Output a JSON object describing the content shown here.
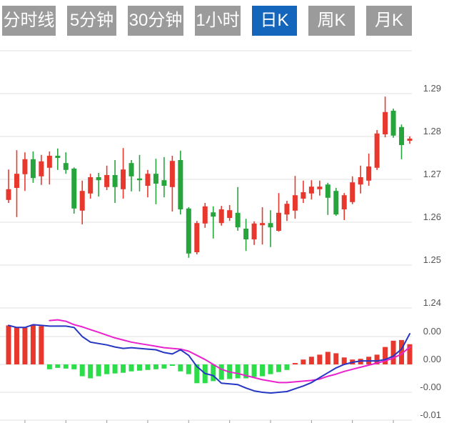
{
  "tabs": {
    "items": [
      {
        "label": "分时线",
        "active": false
      },
      {
        "label": "5分钟",
        "active": false
      },
      {
        "label": "30分钟",
        "active": false
      },
      {
        "label": "1小时",
        "active": false
      },
      {
        "label": "日K",
        "active": true
      },
      {
        "label": "周K",
        "active": false
      },
      {
        "label": "月K",
        "active": false
      }
    ]
  },
  "colors": {
    "up": "#e8382e",
    "down": "#27a53d",
    "macd_up": "#e8382e",
    "macd_down": "#2bdd48",
    "dif_line": "#2636c4",
    "dea_line": "#e922cd",
    "tab_active": "#1466bd",
    "tab_inactive": "#9b9b9b",
    "grid": "#e2e2e2",
    "axis_text": "#555555"
  },
  "chart_data": [
    {
      "type": "candlestick",
      "title": "Daily K-line (日K)",
      "y_axis": {
        "values": [
          1.3,
          1.29,
          1.28,
          1.27,
          1.26,
          1.25,
          1.24
        ],
        "labels": [
          "",
          "1.29",
          "1.28",
          "1.27",
          "1.26",
          "1.25",
          "1.24"
        ]
      },
      "ylim": [
        1.2375,
        1.3017
      ],
      "grid": true,
      "candles": [
        [
          1.2652,
          1.2723,
          1.2645,
          1.2677
        ],
        [
          1.268,
          1.2768,
          1.2612,
          1.2713
        ],
        [
          1.2712,
          1.2763,
          1.2673,
          1.2747
        ],
        [
          1.2747,
          1.2765,
          1.2692,
          1.2703
        ],
        [
          1.2707,
          1.2757,
          1.2687,
          1.2742
        ],
        [
          1.2727,
          1.2765,
          1.2688,
          1.2755
        ],
        [
          1.2755,
          1.2772,
          1.2722,
          1.275
        ],
        [
          1.2738,
          1.2763,
          1.2713,
          1.2722
        ],
        [
          1.2725,
          1.2728,
          1.262,
          1.2632
        ],
        [
          1.2627,
          1.2697,
          1.2595,
          1.2673
        ],
        [
          1.2667,
          1.2713,
          1.2655,
          1.2705
        ],
        [
          1.2705,
          1.2715,
          1.266,
          1.2698
        ],
        [
          1.2682,
          1.2732,
          1.2675,
          1.271
        ],
        [
          1.271,
          1.2745,
          1.2645,
          1.2682
        ],
        [
          1.2677,
          1.2773,
          1.2655,
          1.2723
        ],
        [
          1.2738,
          1.2745,
          1.2672,
          1.2707
        ],
        [
          1.2702,
          1.2757,
          1.2672,
          1.2698
        ],
        [
          1.2685,
          1.2722,
          1.2658,
          1.2713
        ],
        [
          1.2713,
          1.2748,
          1.2642,
          1.269
        ],
        [
          1.2698,
          1.2752,
          1.2658,
          1.2685
        ],
        [
          1.2682,
          1.2755,
          1.2625,
          1.2743
        ],
        [
          1.2745,
          1.2767,
          1.2618,
          1.263
        ],
        [
          1.2632,
          1.2635,
          1.2517,
          1.2527
        ],
        [
          1.253,
          1.2603,
          1.2525,
          1.2598
        ],
        [
          1.2597,
          1.2645,
          1.2587,
          1.2637
        ],
        [
          1.2623,
          1.2637,
          1.2562,
          1.2613
        ],
        [
          1.2598,
          1.2638,
          1.2592,
          1.263
        ],
        [
          1.261,
          1.264,
          1.2603,
          1.2628
        ],
        [
          1.2622,
          1.2682,
          1.258,
          1.2588
        ],
        [
          1.2585,
          1.2608,
          1.2533,
          1.256
        ],
        [
          1.256,
          1.2602,
          1.2547,
          1.2597
        ],
        [
          1.2593,
          1.2635,
          1.2548,
          1.2598
        ],
        [
          1.2598,
          1.2628,
          1.2542,
          1.2588
        ],
        [
          1.258,
          1.2668,
          1.2578,
          1.2622
        ],
        [
          1.2618,
          1.265,
          1.2603,
          1.2643
        ],
        [
          1.2627,
          1.2708,
          1.2608,
          1.2663
        ],
        [
          1.2655,
          1.2697,
          1.2645,
          1.267
        ],
        [
          1.2667,
          1.2698,
          1.2653,
          1.2683
        ],
        [
          1.2677,
          1.2697,
          1.2662,
          1.2683
        ],
        [
          1.2688,
          1.2692,
          1.2617,
          1.2657
        ],
        [
          1.2673,
          1.268,
          1.2615,
          1.2618
        ],
        [
          1.263,
          1.2668,
          1.2605,
          1.2663
        ],
        [
          1.2647,
          1.2707,
          1.2642,
          1.2693
        ],
        [
          1.2688,
          1.2732,
          1.2667,
          1.2705
        ],
        [
          1.2697,
          1.276,
          1.2685,
          1.273
        ],
        [
          1.2727,
          1.2815,
          1.2722,
          1.2807
        ],
        [
          1.2805,
          1.2893,
          1.2798,
          1.2857
        ],
        [
          1.286,
          1.2865,
          1.2797,
          1.2802
        ],
        [
          1.2822,
          1.2828,
          1.2747,
          1.278
        ],
        [
          1.279,
          1.28,
          1.2783,
          1.2795
        ]
      ]
    },
    {
      "type": "macd",
      "title": "MACD",
      "y_axis": {
        "values": [
          0.004,
          0.0,
          -0.004,
          -0.008
        ],
        "labels": [
          "0.00",
          "0.00",
          "-0.00",
          "-0.01"
        ]
      },
      "grid": true,
      "histogram": [
        0.0056,
        0.0053,
        0.0053,
        0.0057,
        0.0055,
        -0.0007,
        -0.0005,
        -0.0006,
        -0.0007,
        -0.0017,
        -0.002,
        -0.0017,
        -0.0014,
        -0.0013,
        -0.0012,
        -0.001,
        -0.0009,
        -0.0008,
        -0.0007,
        -0.0006,
        -0.0002,
        -0.001,
        -0.0014,
        -0.0027,
        -0.0027,
        -0.0024,
        -0.0022,
        -0.0021,
        -0.002,
        -0.002,
        -0.0018,
        -0.0017,
        -0.0014,
        -0.0011,
        -0.0008,
        0.0002,
        0.0007,
        0.0011,
        0.0014,
        0.0018,
        0.0016,
        0.001,
        0.0007,
        0.0008,
        0.0011,
        0.0014,
        0.0025,
        0.0034,
        0.0035,
        0.0029
      ],
      "dif": [
        0.0056,
        0.0053,
        0.0053,
        0.0057,
        0.0056,
        0.0055,
        0.0055,
        0.0055,
        0.0053,
        0.004,
        0.0032,
        0.003,
        0.0028,
        0.0025,
        0.0023,
        0.0024,
        0.0023,
        0.0022,
        0.0021,
        0.0017,
        0.0015,
        0.0021,
        0.0013,
        -0.0003,
        -0.0013,
        -0.0016,
        -0.0027,
        -0.0028,
        -0.0029,
        -0.0034,
        -0.0038,
        -0.004,
        -0.0041,
        -0.004,
        -0.0039,
        -0.0035,
        -0.0031,
        -0.0026,
        -0.0019,
        -0.0012,
        -0.0005,
        0.0,
        0.0003,
        0.0005,
        0.0005,
        0.0005,
        0.0007,
        0.0012,
        0.0022,
        0.0044
      ],
      "dea": [
        null,
        null,
        null,
        null,
        null,
        0.0063,
        0.0064,
        0.0062,
        0.0057,
        0.0054,
        0.005,
        0.0046,
        0.0042,
        0.0038,
        0.0035,
        0.0032,
        0.003,
        0.0028,
        0.0026,
        0.0024,
        0.0023,
        0.0022,
        0.0019,
        0.0013,
        0.0007,
        0.0,
        -0.0007,
        -0.0011,
        -0.0013,
        -0.0016,
        -0.0019,
        -0.0022,
        -0.0024,
        -0.0026,
        -0.0026,
        -0.0025,
        -0.0024,
        -0.0023,
        -0.0021,
        -0.0017,
        -0.0014,
        -0.001,
        -0.0007,
        -0.0004,
        -0.0001,
        0.0002,
        0.0005,
        0.0009,
        0.0015,
        0.0025
      ],
      "tick_indices": [
        2,
        7,
        12,
        17,
        22,
        27,
        32,
        37,
        42,
        47
      ]
    }
  ]
}
